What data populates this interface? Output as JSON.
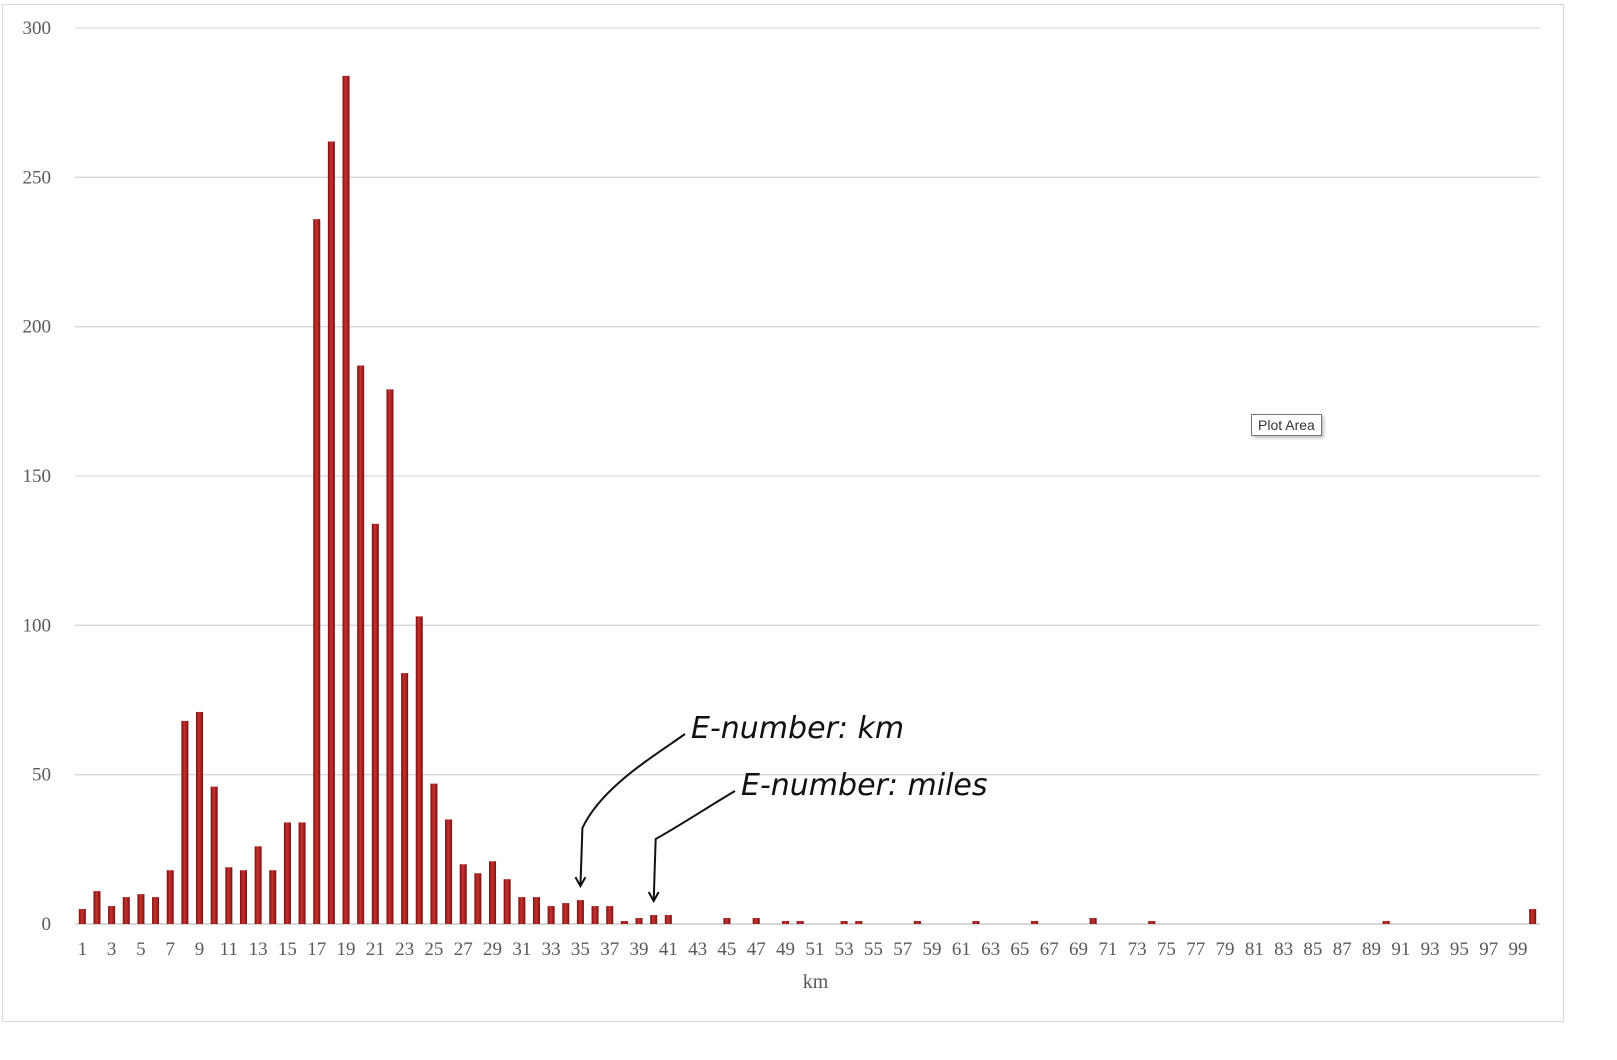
{
  "chart_data": {
    "type": "bar",
    "xlabel": "km",
    "ylabel": "",
    "ylim": [
      0,
      300
    ],
    "yticks": [
      0,
      50,
      100,
      150,
      200,
      250,
      300
    ],
    "grid": true,
    "legend": "none",
    "series_color": "#a61c1c",
    "x": [
      1,
      2,
      3,
      4,
      5,
      6,
      7,
      8,
      9,
      10,
      11,
      12,
      13,
      14,
      15,
      16,
      17,
      18,
      19,
      20,
      21,
      22,
      23,
      24,
      25,
      26,
      27,
      28,
      29,
      30,
      31,
      32,
      33,
      34,
      35,
      36,
      37,
      38,
      39,
      40,
      41,
      42,
      43,
      44,
      45,
      46,
      47,
      48,
      49,
      50,
      51,
      52,
      53,
      54,
      55,
      56,
      57,
      58,
      59,
      60,
      61,
      62,
      63,
      64,
      65,
      66,
      67,
      68,
      69,
      70,
      71,
      72,
      73,
      74,
      75,
      76,
      77,
      78,
      79,
      80,
      81,
      82,
      83,
      84,
      85,
      86,
      87,
      88,
      89,
      90,
      91,
      92,
      93,
      94,
      95,
      96,
      97,
      98,
      99,
      100
    ],
    "xtick_labels": [
      "1",
      "3",
      "5",
      "7",
      "9",
      "11",
      "13",
      "15",
      "17",
      "19",
      "21",
      "23",
      "25",
      "27",
      "29",
      "31",
      "33",
      "35",
      "37",
      "39",
      "41",
      "43",
      "45",
      "47",
      "49",
      "51",
      "53",
      "55",
      "57",
      "59",
      "61",
      "63",
      "65",
      "67",
      "69",
      "71",
      "73",
      "75",
      "77",
      "79",
      "81",
      "83",
      "85",
      "87",
      "89",
      "91",
      "93",
      "95",
      "97",
      "99"
    ],
    "values": [
      5,
      11,
      6,
      9,
      10,
      9,
      18,
      68,
      71,
      46,
      19,
      18,
      26,
      18,
      34,
      34,
      236,
      262,
      284,
      187,
      134,
      179,
      84,
      103,
      47,
      35,
      20,
      17,
      21,
      15,
      9,
      9,
      6,
      7,
      8,
      6,
      6,
      1,
      2,
      3,
      3,
      0,
      0,
      0,
      2,
      0,
      2,
      0,
      1,
      1,
      0,
      0,
      1,
      1,
      0,
      0,
      0,
      1,
      0,
      0,
      0,
      1,
      0,
      0,
      0,
      1,
      0,
      0,
      0,
      2,
      0,
      0,
      0,
      1,
      0,
      0,
      0,
      0,
      0,
      0,
      0,
      0,
      0,
      0,
      0,
      0,
      0,
      0,
      0,
      1,
      0,
      0,
      0,
      0,
      0,
      0,
      0,
      0,
      0,
      5
    ],
    "annotations": [
      {
        "text": "E-number: km",
        "target_x": 35
      },
      {
        "text": "E-number: miles",
        "target_x": 40
      }
    ]
  },
  "ui": {
    "tooltip": "Plot Area"
  }
}
